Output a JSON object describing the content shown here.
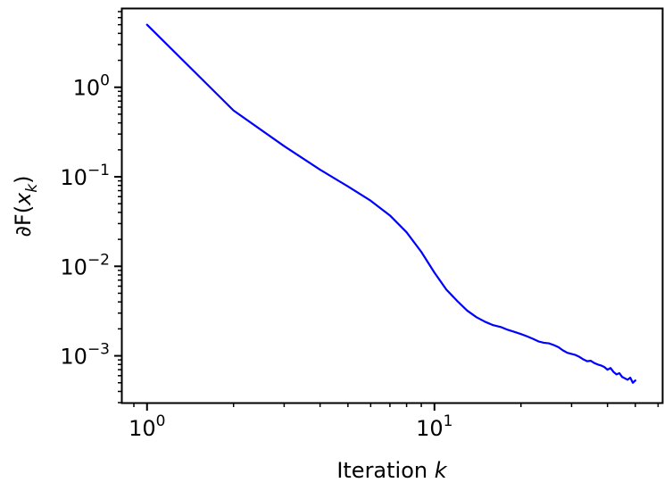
{
  "chart_data": {
    "type": "line",
    "xscale": "log",
    "yscale": "log",
    "xlabel": "Iteration",
    "xlabel_var": "k",
    "ylabel_prefix": "∂F(",
    "ylabel_var": "x",
    "ylabel_sub": "k",
    "ylabel_suffix": ")",
    "xlim": [
      0.82,
      62
    ],
    "ylim": [
      0.0003,
      7.5
    ],
    "x_ticks": [
      {
        "value": 1,
        "base": "10",
        "exp": "0"
      },
      {
        "value": 10,
        "base": "10",
        "exp": "1"
      }
    ],
    "y_ticks": [
      {
        "value": 1,
        "base": "10",
        "exp": "0"
      },
      {
        "value": 0.1,
        "base": "10",
        "exp": "−1"
      },
      {
        "value": 0.01,
        "base": "10",
        "exp": "−2"
      },
      {
        "value": 0.001,
        "base": "10",
        "exp": "−3"
      }
    ],
    "grid": false,
    "series": [
      {
        "color": "#0000ff",
        "x": [
          1,
          2,
          3,
          4,
          5,
          6,
          7,
          8,
          9,
          10,
          11,
          12,
          13,
          14,
          15,
          16,
          17,
          18,
          19,
          20,
          21,
          22,
          23,
          24,
          25,
          26,
          27,
          28,
          29,
          30,
          31,
          32,
          33,
          34,
          35,
          36,
          37,
          38,
          39,
          40,
          41,
          42,
          43,
          44,
          45,
          46,
          47,
          48,
          49,
          50
        ],
        "y": [
          5.0,
          0.55,
          0.22,
          0.12,
          0.078,
          0.054,
          0.037,
          0.024,
          0.0145,
          0.0085,
          0.0055,
          0.0041,
          0.0032,
          0.0027,
          0.0024,
          0.0022,
          0.0021,
          0.00195,
          0.00185,
          0.00175,
          0.00165,
          0.00155,
          0.00145,
          0.0014,
          0.00138,
          0.00132,
          0.00125,
          0.00115,
          0.00108,
          0.00105,
          0.00102,
          0.00097,
          0.00091,
          0.00087,
          0.00088,
          0.00083,
          0.0008,
          0.00078,
          0.00075,
          0.0007,
          0.00073,
          0.00066,
          0.00062,
          0.00064,
          0.00058,
          0.00056,
          0.00054,
          0.00057,
          0.0005,
          0.00053
        ]
      }
    ]
  }
}
